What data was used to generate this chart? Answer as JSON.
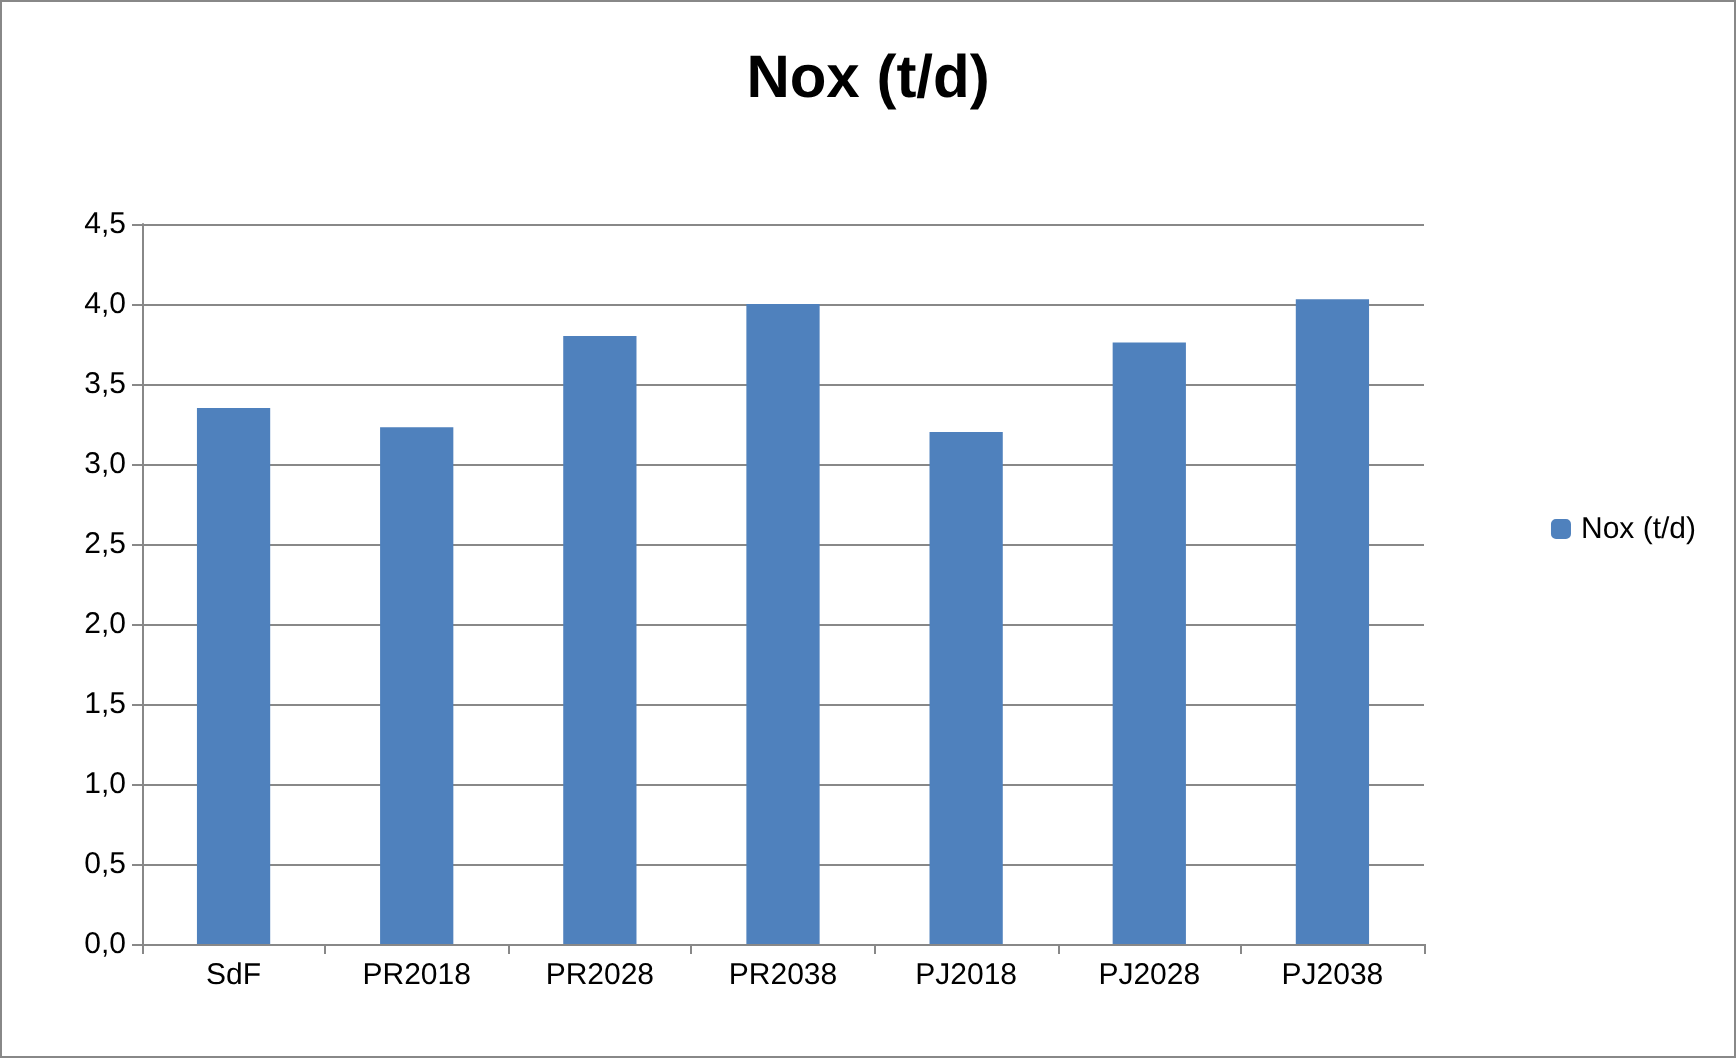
{
  "chart_data": {
    "type": "bar",
    "title": "Nox (t/d)",
    "categories": [
      "SdF",
      "PR2018",
      "PR2028",
      "PR2038",
      "PJ2018",
      "PJ2028",
      "PJ2038"
    ],
    "series": [
      {
        "name": "Nox (t/d)",
        "color": "#4f81bd",
        "values": [
          3.35,
          3.23,
          3.8,
          4.0,
          3.2,
          3.76,
          4.03
        ]
      }
    ],
    "ylim": [
      0,
      4.5
    ],
    "yticks": [
      {
        "value": 0,
        "label": "0,0"
      },
      {
        "value": 0.5,
        "label": "0,5"
      },
      {
        "value": 1,
        "label": "1,0"
      },
      {
        "value": 1.5,
        "label": "1,5"
      },
      {
        "value": 2,
        "label": "2,0"
      },
      {
        "value": 2.5,
        "label": "2,5"
      },
      {
        "value": 3,
        "label": "3,0"
      },
      {
        "value": 3.5,
        "label": "3,5"
      },
      {
        "value": 4,
        "label": "4,0"
      },
      {
        "value": 4.5,
        "label": "4,5"
      }
    ],
    "grid": "y",
    "legend": "right"
  }
}
